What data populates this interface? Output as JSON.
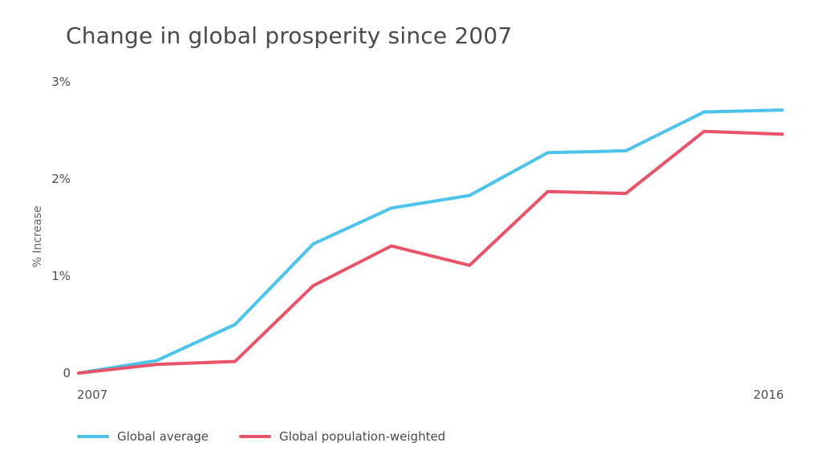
{
  "chart_data": {
    "type": "line",
    "title": "Change in global prosperity since 2007",
    "ylabel": "% Increase",
    "xlabel": "",
    "x": [
      2007,
      2008,
      2009,
      2010,
      2011,
      2012,
      2013,
      2014,
      2015,
      2016
    ],
    "x_tick_labels": [
      {
        "x": 2007,
        "label": "2007"
      },
      {
        "x": 2016,
        "label": "2016"
      }
    ],
    "y_ticks": [
      {
        "value": 0,
        "label": "0"
      },
      {
        "value": 1,
        "label": "1%"
      },
      {
        "value": 2,
        "label": "2%"
      },
      {
        "value": 3,
        "label": "3%"
      }
    ],
    "ylim": [
      0,
      3
    ],
    "grid": false,
    "legend_position": "bottom-left",
    "series": [
      {
        "name": "Global average",
        "color": "#4cc3ea",
        "values": [
          0.0,
          0.13,
          0.5,
          1.33,
          1.7,
          1.83,
          2.27,
          2.29,
          2.69,
          2.71
        ]
      },
      {
        "name": "Global population-weighted",
        "color": "#e8536a",
        "values": [
          0.0,
          0.09,
          0.12,
          0.9,
          1.31,
          1.11,
          1.87,
          1.85,
          2.49,
          2.46
        ]
      }
    ]
  }
}
